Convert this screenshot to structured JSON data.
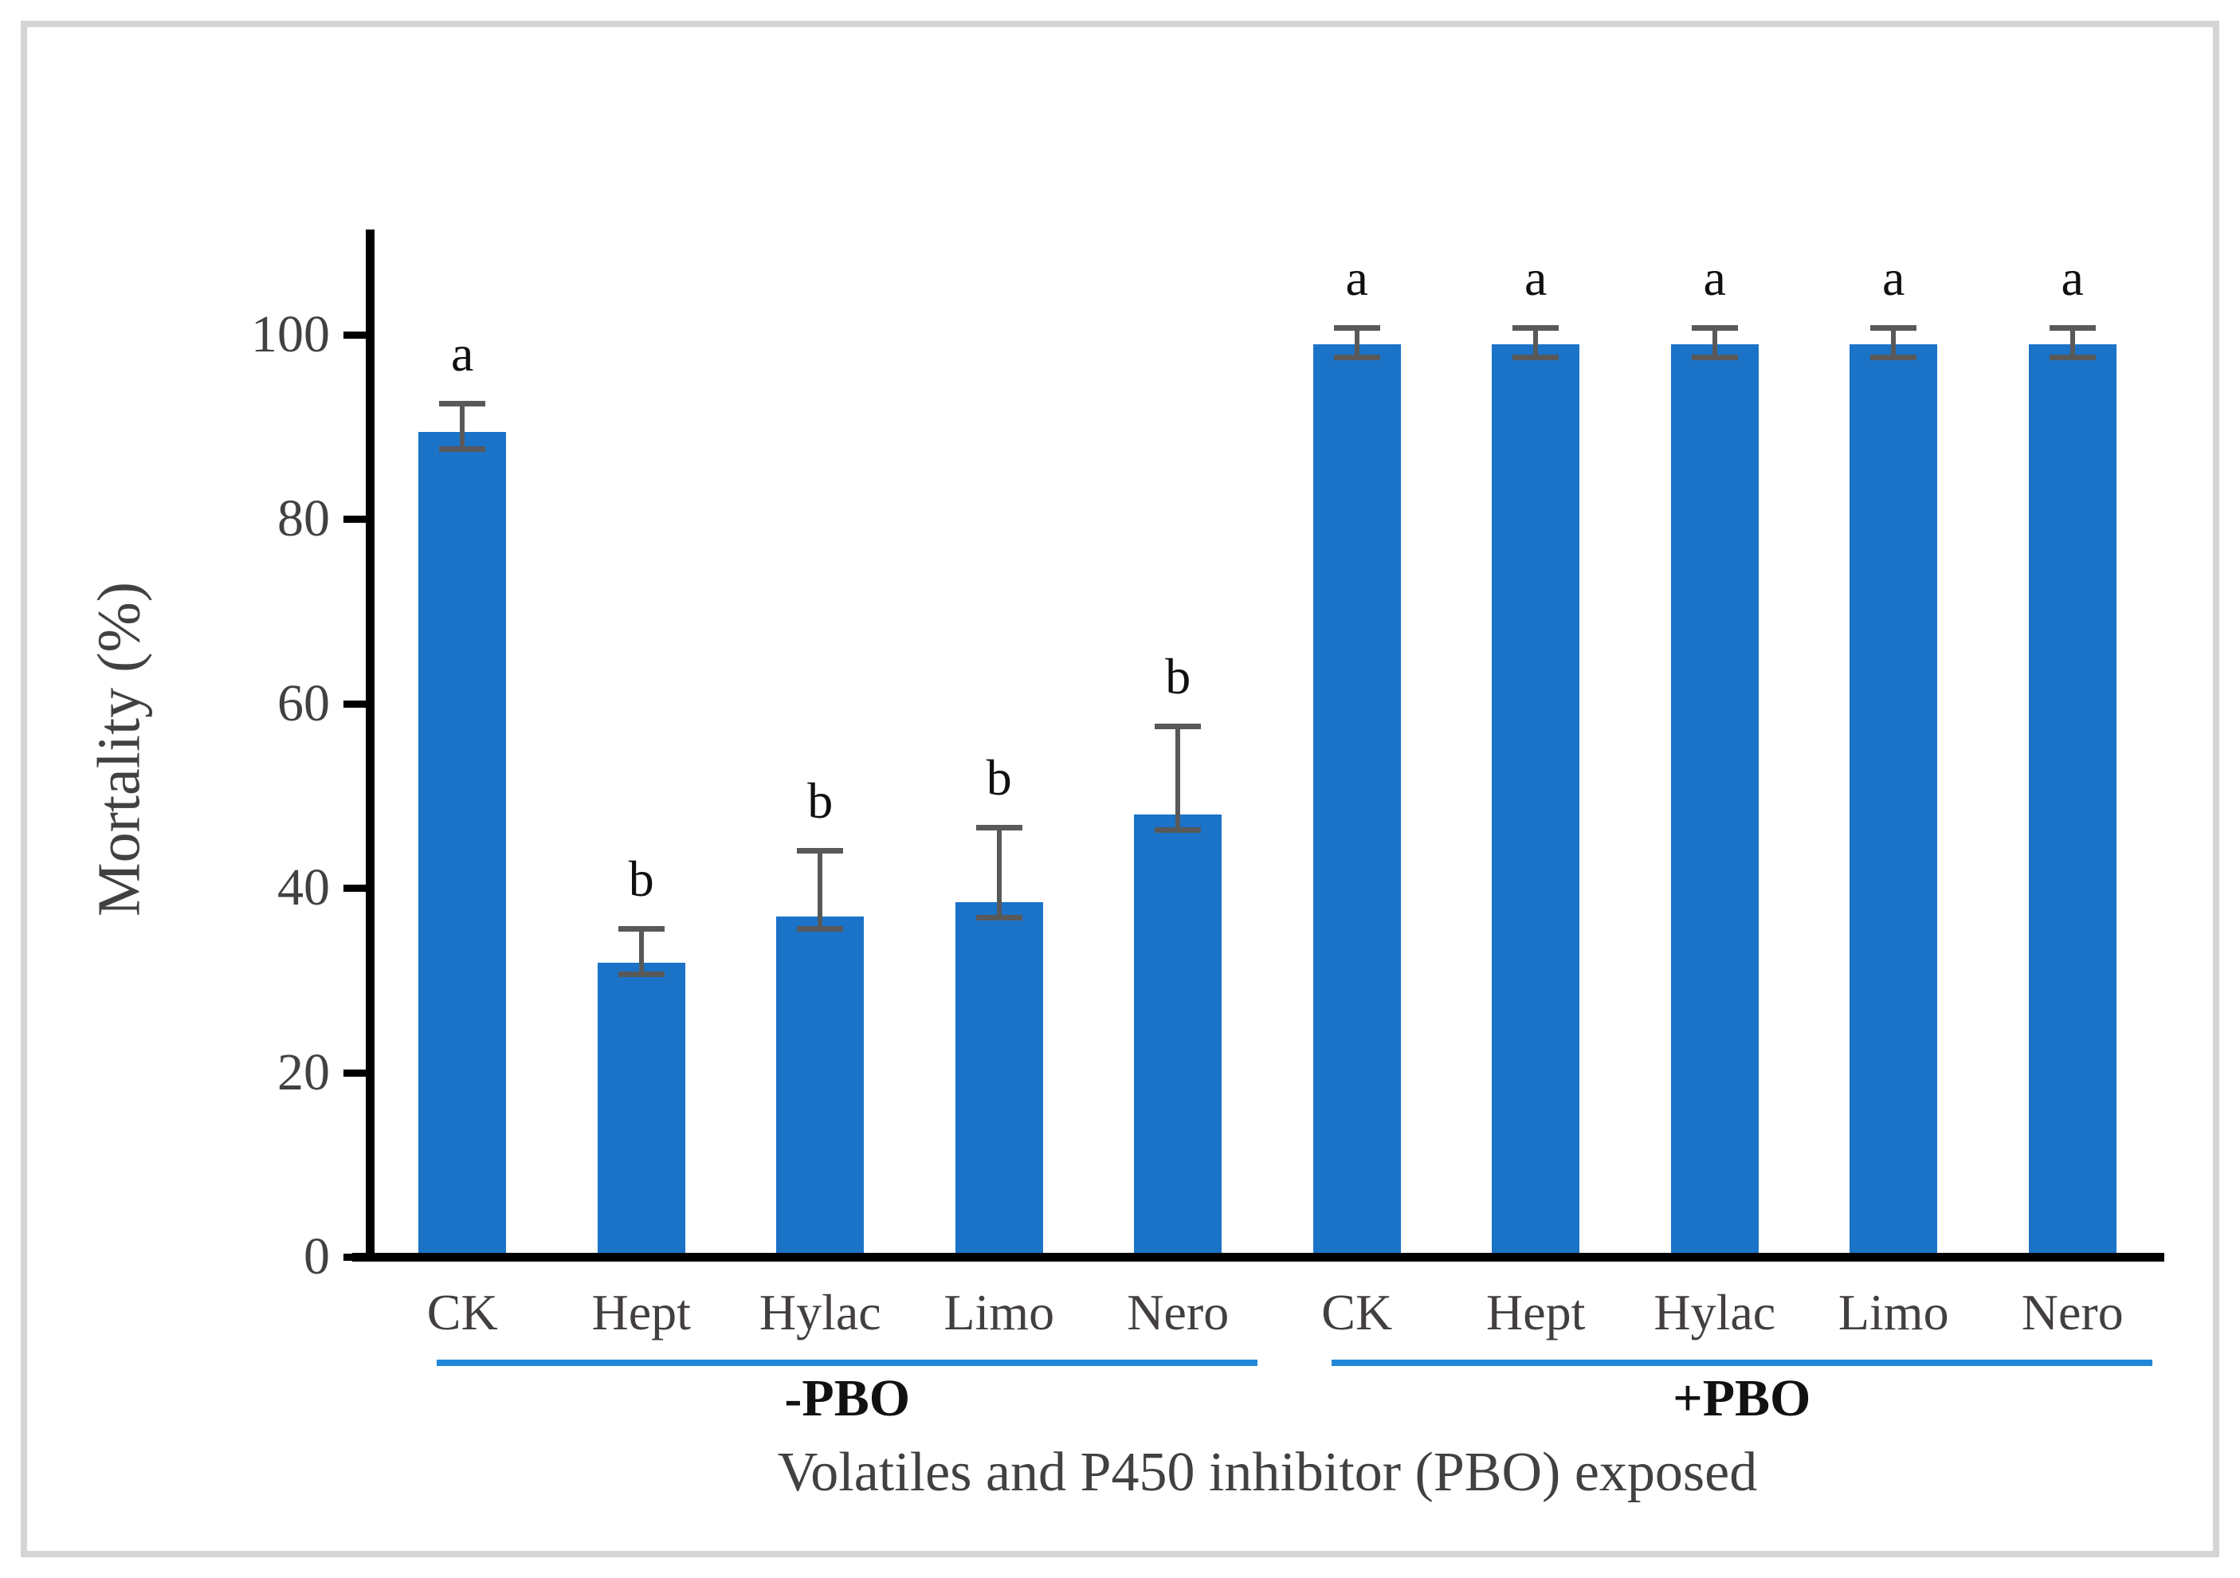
{
  "figure": {
    "background": "#ffffff",
    "frame_color": "#d4d4d4"
  },
  "chart_data": {
    "type": "bar",
    "title": "",
    "ylabel": "Mortality (%)",
    "xlabel": "Volatiles and P450 inhibitor (PBO) exposed",
    "ylim": [
      0,
      110
    ],
    "yticks": [
      0,
      20,
      40,
      60,
      80,
      100
    ],
    "grid": false,
    "legend_position": "none",
    "bar_color": "#1b73c8",
    "error_bar_color": "#595959",
    "underline_color": "#2188d8",
    "groups": [
      {
        "label": "-PBO",
        "categories": [
          "CK",
          "Hept",
          "Hylac",
          "Limo",
          "Nero"
        ],
        "values": [
          89,
          31.5,
          36.5,
          38,
          47.5
        ],
        "errors_up": [
          3,
          3.5,
          7,
          8,
          9.5
        ],
        "errors_down": [
          1.7,
          1.2,
          1.2,
          1.5,
          1.5
        ],
        "sig_letters": [
          "a",
          "b",
          "b",
          "b",
          "b"
        ]
      },
      {
        "label": "+PBO",
        "categories": [
          "CK",
          "Hept",
          "Hylac",
          "Limo",
          "Nero"
        ],
        "values": [
          98.5,
          98.5,
          98.5,
          98.5,
          98.5
        ],
        "errors_up": [
          1.7,
          1.7,
          1.7,
          1.7,
          1.7
        ],
        "errors_down": [
          1.3,
          1.3,
          1.3,
          1.3,
          1.3
        ],
        "sig_letters": [
          "a",
          "a",
          "a",
          "a",
          "a"
        ]
      }
    ]
  }
}
